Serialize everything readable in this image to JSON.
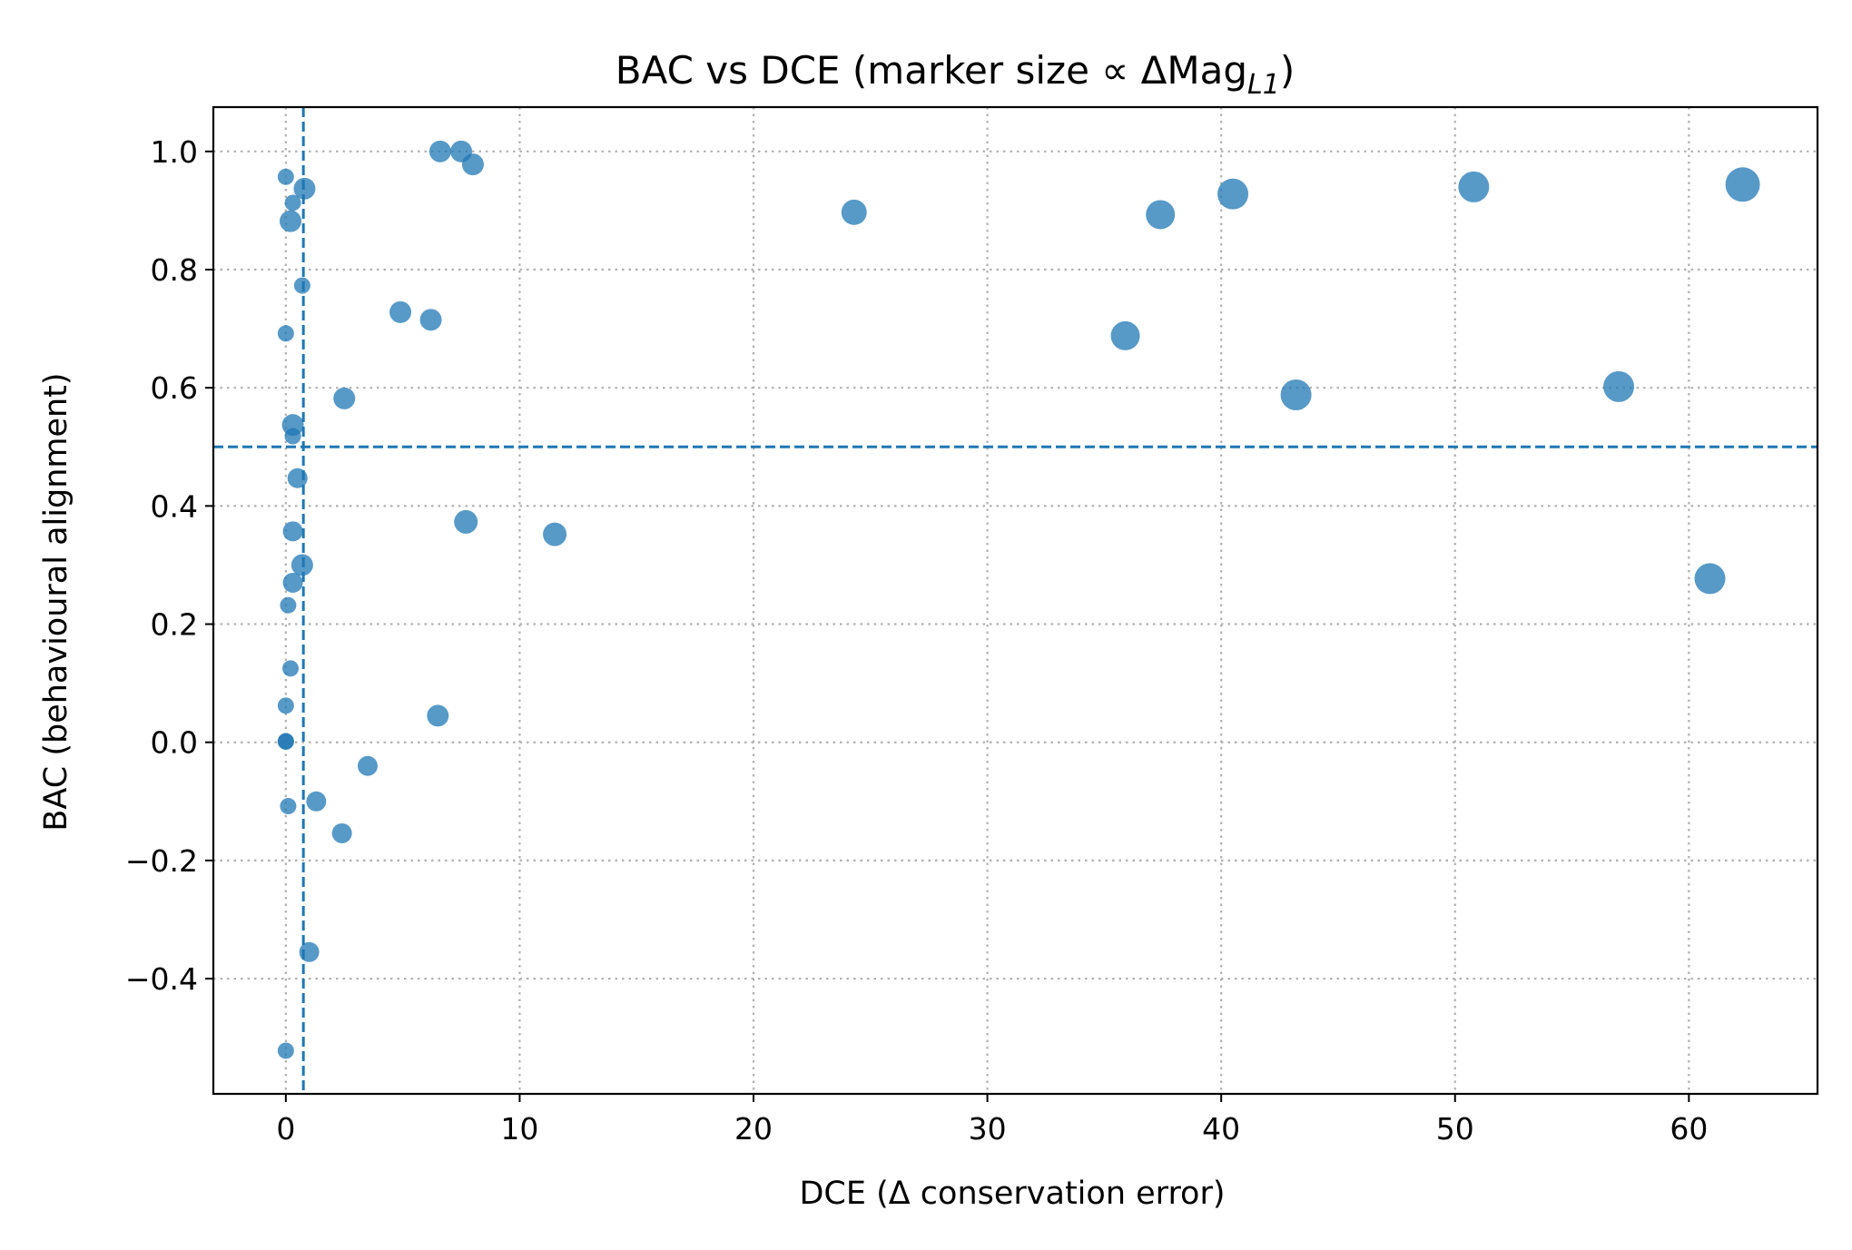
{
  "chart_data": {
    "type": "scatter",
    "title_parts": {
      "main": "BAC vs DCE (marker size ∝ ΔMag",
      "subscript": "L1",
      "close": ")"
    },
    "xlabel": "DCE (Δ conservation error)",
    "ylabel": "BAC (behavioural alignment)",
    "xlim": [
      -3.1,
      65.5
    ],
    "ylim": [
      -0.595,
      1.075
    ],
    "xticks": [
      0,
      10,
      20,
      30,
      40,
      50,
      60
    ],
    "xtick_labels": [
      "0",
      "10",
      "20",
      "30",
      "40",
      "50",
      "60"
    ],
    "yticks": [
      -0.4,
      -0.2,
      0.0,
      0.2,
      0.4,
      0.6,
      0.8,
      1.0
    ],
    "ytick_labels": [
      "−0.4",
      "−0.2",
      "0.0",
      "0.2",
      "0.4",
      "0.6",
      "0.8",
      "1.0"
    ],
    "grid": true,
    "color": "#1f77b4",
    "reference_lines": {
      "x": 0.75,
      "y": 0.5
    },
    "points": [
      {
        "x": 0.0,
        "y": 0.957,
        "s": 1
      },
      {
        "x": 0.8,
        "y": 0.937,
        "s": 3
      },
      {
        "x": 0.3,
        "y": 0.913,
        "s": 1
      },
      {
        "x": 0.2,
        "y": 0.882,
        "s": 3
      },
      {
        "x": 0.7,
        "y": 0.773,
        "s": 1
      },
      {
        "x": 0.0,
        "y": 0.692,
        "s": 1
      },
      {
        "x": 0.3,
        "y": 0.537,
        "s": 3
      },
      {
        "x": 0.3,
        "y": 0.518,
        "s": 1
      },
      {
        "x": 0.5,
        "y": 0.447,
        "s": 2
      },
      {
        "x": 0.3,
        "y": 0.357,
        "s": 2
      },
      {
        "x": 0.7,
        "y": 0.3,
        "s": 3
      },
      {
        "x": 0.3,
        "y": 0.27,
        "s": 2
      },
      {
        "x": 0.1,
        "y": 0.232,
        "s": 1
      },
      {
        "x": 0.2,
        "y": 0.125,
        "s": 1
      },
      {
        "x": 0.0,
        "y": 0.062,
        "s": 1
      },
      {
        "x": 0.0,
        "y": 0.002,
        "s": 1
      },
      {
        "x": 0.0,
        "y": 0.001,
        "s": 1
      },
      {
        "x": 0.1,
        "y": -0.108,
        "s": 1
      },
      {
        "x": 1.0,
        "y": -0.355,
        "s": 2
      },
      {
        "x": 0.0,
        "y": -0.522,
        "s": 1
      },
      {
        "x": 1.3,
        "y": -0.1,
        "s": 2
      },
      {
        "x": 2.4,
        "y": -0.154,
        "s": 2
      },
      {
        "x": 2.5,
        "y": 0.582,
        "s": 3
      },
      {
        "x": 3.5,
        "y": -0.04,
        "s": 2
      },
      {
        "x": 4.9,
        "y": 0.728,
        "s": 3
      },
      {
        "x": 6.2,
        "y": 0.715,
        "s": 3
      },
      {
        "x": 6.6,
        "y": 1.0,
        "s": 3
      },
      {
        "x": 7.5,
        "y": 1.0,
        "s": 3
      },
      {
        "x": 8.0,
        "y": 0.978,
        "s": 3
      },
      {
        "x": 6.5,
        "y": 0.045,
        "s": 3
      },
      {
        "x": 7.7,
        "y": 0.373,
        "s": 4
      },
      {
        "x": 11.5,
        "y": 0.352,
        "s": 4
      },
      {
        "x": 24.3,
        "y": 0.897,
        "s": 5
      },
      {
        "x": 35.9,
        "y": 0.688,
        "s": 6
      },
      {
        "x": 37.4,
        "y": 0.893,
        "s": 6
      },
      {
        "x": 40.5,
        "y": 0.928,
        "s": 7
      },
      {
        "x": 43.2,
        "y": 0.588,
        "s": 7
      },
      {
        "x": 50.8,
        "y": 0.94,
        "s": 7
      },
      {
        "x": 57.0,
        "y": 0.602,
        "s": 7
      },
      {
        "x": 60.9,
        "y": 0.277,
        "s": 7
      },
      {
        "x": 62.3,
        "y": 0.944,
        "s": 8
      }
    ]
  }
}
